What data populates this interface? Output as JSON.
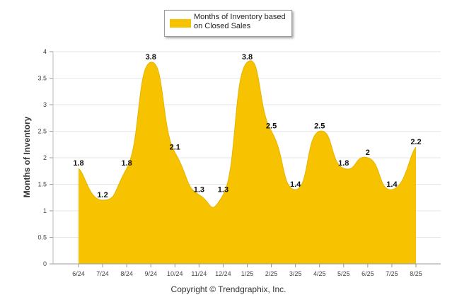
{
  "chart_data": {
    "type": "area",
    "categories": [
      "6/24",
      "7/24",
      "8/24",
      "9/24",
      "10/24",
      "11/24",
      "12/24",
      "1/25",
      "2/25",
      "3/25",
      "4/25",
      "5/25",
      "6/25",
      "7/25",
      "8/25"
    ],
    "series": [
      {
        "name": "Months of Inventory based on Closed Sales",
        "values": [
          1.8,
          1.2,
          1.8,
          3.8,
          2.1,
          1.3,
          1.3,
          3.8,
          2.5,
          1.4,
          2.5,
          1.8,
          2,
          1.4,
          2.2
        ],
        "labels": [
          "1.8",
          "1.2",
          "1.8",
          "3.8",
          "2.1",
          "1.3",
          "1.3",
          "3.8",
          "2.5",
          "1.4",
          "2.5",
          "1.8",
          "2",
          "1.4",
          "2.2"
        ],
        "color": "#f7c200"
      }
    ],
    "ylabel": "Months of Inventory",
    "xlabel": "",
    "ylim": [
      0,
      4
    ],
    "yticks": [
      "0",
      "0.5",
      "1",
      "1.5",
      "2",
      "2.5",
      "3",
      "3.5",
      "4"
    ],
    "grid": true,
    "legend_position": "top-center"
  },
  "legend": {
    "label": "Months of Inventory based on Closed Sales"
  },
  "footer": {
    "copyright": "Copyright © Trendgraphix, Inc."
  }
}
